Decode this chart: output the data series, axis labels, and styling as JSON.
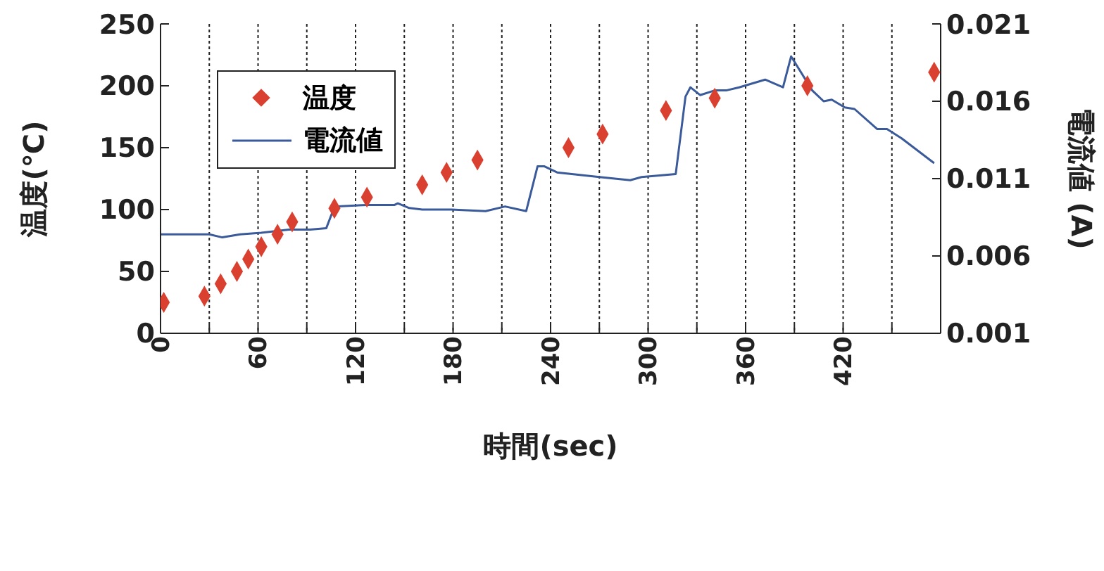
{
  "chart_data": {
    "type": "scatter",
    "xlabel": "時間(sec)",
    "ylabel": "温度(℃)",
    "y2label": "電流値 (A)",
    "xlim": [
      0,
      480
    ],
    "xticks": [
      0,
      {
        "value": 30,
        "label": null
      },
      60,
      {
        "value": 90,
        "label": null
      },
      120,
      {
        "value": 150,
        "label": null
      },
      180,
      {
        "value": 210,
        "label": null
      },
      240,
      {
        "value": 270,
        "label": null
      },
      300,
      {
        "value": 330,
        "label": null
      },
      360,
      {
        "value": 390,
        "label": null
      },
      420,
      {
        "value": 450,
        "label": null
      }
    ],
    "ylim": [
      0,
      250
    ],
    "yticks": [
      0,
      50,
      100,
      150,
      200,
      250
    ],
    "y2lim": [
      0.001,
      0.021
    ],
    "y2ticks": [
      0.001,
      0.006,
      0.011,
      0.016,
      0.021
    ],
    "grid": "x",
    "legend": "top left",
    "series": [
      {
        "name": "温度",
        "type": "scatter",
        "marker": "diamond",
        "color": "#d94030",
        "x": [
          2,
          27,
          37,
          47,
          54,
          62,
          72,
          81,
          107,
          127,
          161,
          176,
          195,
          251,
          272,
          311,
          341,
          398,
          476
        ],
        "values": [
          25,
          30,
          40,
          50,
          60,
          70,
          80,
          90,
          101,
          110,
          120,
          130,
          140,
          150,
          161,
          180,
          190,
          200,
          211
        ]
      },
      {
        "name": "電流値",
        "type": "line",
        "axis": "y2",
        "marker": "none",
        "line_style": "solid",
        "color": "#3a5a9a",
        "x": [
          0,
          30,
          38,
          49,
          62,
          79,
          92,
          102,
          106,
          109,
          127,
          144,
          146,
          153,
          161,
          179,
          200,
          212,
          225,
          232,
          236,
          244,
          261,
          270,
          289,
          296,
          317,
          323,
          326,
          332,
          341,
          348,
          356,
          372,
          383,
          388,
          401,
          408,
          413,
          421,
          427,
          441,
          447,
          456,
          476
        ],
        "values": [
          0.0074,
          0.0074,
          0.0072,
          0.0074,
          0.0075,
          0.0077,
          0.0077,
          0.0078,
          0.0089,
          0.0092,
          0.0093,
          0.0093,
          0.0094,
          0.0091,
          0.009,
          0.009,
          0.0089,
          0.0092,
          0.0089,
          0.0118,
          0.0118,
          0.0114,
          0.0112,
          0.0111,
          0.0109,
          0.0111,
          0.0113,
          0.0163,
          0.0169,
          0.0164,
          0.0167,
          0.0167,
          0.0169,
          0.0174,
          0.0169,
          0.0189,
          0.0167,
          0.016,
          0.0161,
          0.0156,
          0.0155,
          0.0142,
          0.0142,
          0.0136,
          0.012
        ]
      }
    ]
  }
}
